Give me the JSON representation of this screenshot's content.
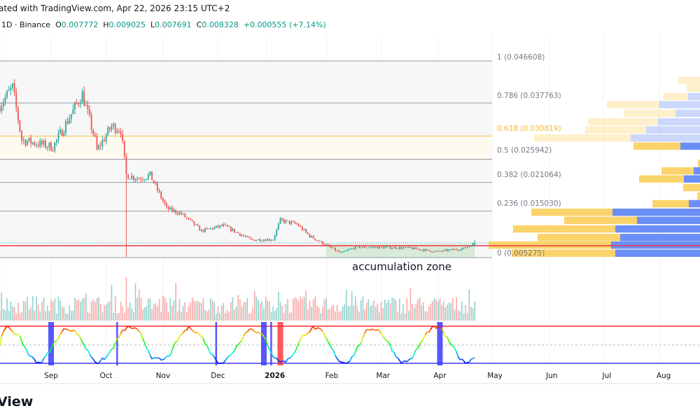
{
  "header": {
    "attribution": "ated with TradingView.com, Apr 22, 2026 23:15 UTC+2",
    "interval_exchange": "1D · Binance",
    "open_label": "O",
    "open": "0.007772",
    "high_label": "H",
    "high": "0.009025",
    "low_label": "L",
    "low": "0.007691",
    "close_label": "C",
    "close": "0.008328",
    "change": "+0.000555 (+7.14%)"
  },
  "footer": {
    "brand_fragment": "View"
  },
  "colors": {
    "up": "#26a69a",
    "down": "#ef5350",
    "fib_highlight": "#f5c342",
    "support": "#f23645",
    "vp_buy": "#fbd36b",
    "vp_sell": "#6b8ff7",
    "signal_blue": "#3b3bff",
    "signal_red": "#ff3b3b"
  },
  "chart_data": {
    "type": "candlestick",
    "interval": "1D",
    "x_unit": "days since Sep 1, 2025",
    "y_range": [
      0.005275,
      0.046608
    ],
    "price_path_anchors": [
      [
        -28,
        0.0373
      ],
      [
        -21,
        0.041
      ],
      [
        -16,
        0.03
      ],
      [
        1,
        0.0285
      ],
      [
        17,
        0.0396
      ],
      [
        24,
        0.03
      ],
      [
        25,
        0.0278
      ],
      [
        33,
        0.0329
      ],
      [
        38,
        0.0322
      ],
      [
        41,
        0.0226
      ],
      [
        48,
        0.0219
      ],
      [
        54,
        0.0226
      ],
      [
        63,
        0.0156
      ],
      [
        71,
        0.0145
      ],
      [
        82,
        0.0109
      ],
      [
        94,
        0.012
      ],
      [
        109,
        0.009
      ],
      [
        121,
        0.0091
      ],
      [
        125,
        0.0131
      ],
      [
        134,
        0.0123
      ],
      [
        141,
        0.0098
      ],
      [
        150,
        0.0079
      ],
      [
        158,
        0.0062
      ],
      [
        166,
        0.0075
      ],
      [
        195,
        0.0073
      ],
      [
        210,
        0.0065
      ],
      [
        225,
        0.0072
      ],
      [
        231,
        0.0083
      ]
    ],
    "last_candle": {
      "open": 0.007772,
      "high": 0.009025,
      "low": 0.007691,
      "close": 0.008328
    },
    "fib_levels": [
      {
        "ratio": "1",
        "price": 0.046608,
        "label": "1 (0.046608)"
      },
      {
        "ratio": "0.786",
        "price": 0.037763,
        "label": "0.786 (0.037763)"
      },
      {
        "ratio": "0.618",
        "price": 0.030819,
        "label": "0.618 (0.030819)",
        "highlight": true
      },
      {
        "ratio": "0.5",
        "price": 0.025942,
        "label": "0.5 (0.025942)"
      },
      {
        "ratio": "0.382",
        "price": 0.021064,
        "label": "0.382 (0.021064)"
      },
      {
        "ratio": "0.236",
        "price": 0.01503,
        "label": "0.236 (0.015030)"
      },
      {
        "ratio": "0",
        "price": 0.005275,
        "label": "0 (0.005275)"
      }
    ],
    "support_line_price": 0.0076,
    "accumulation_zone": {
      "label": "accumulation zone",
      "start_day": 150,
      "end_day": 231,
      "low": 0.005275,
      "high": 0.0081
    },
    "volume_profile": [
      [
        0.0425,
        32,
        0,
        true
      ],
      [
        0.0409,
        19,
        0,
        true
      ],
      [
        0.0391,
        35,
        17,
        true
      ],
      [
        0.0374,
        75,
        58,
        true
      ],
      [
        0.0356,
        74,
        35,
        true
      ],
      [
        0.0338,
        100,
        60,
        true
      ],
      [
        0.0321,
        87,
        77,
        true
      ],
      [
        0.0304,
        138,
        99,
        true
      ],
      [
        0.0287,
        67,
        28,
        false
      ],
      [
        0.0251,
        3,
        0,
        false
      ],
      [
        0.0235,
        46,
        9,
        false
      ],
      [
        0.0218,
        64,
        23,
        false
      ],
      [
        0.02,
        24,
        0,
        false
      ],
      [
        0.0182,
        4,
        0,
        false
      ],
      [
        0.0166,
        52,
        16,
        false
      ],
      [
        0.0148,
        116,
        125,
        false
      ],
      [
        0.0131,
        104,
        90,
        false
      ],
      [
        0.0113,
        146,
        121,
        false
      ],
      [
        0.0095,
        118,
        114,
        false
      ],
      [
        0.0079,
        175,
        127,
        false
      ],
      [
        0.0062,
        148,
        121,
        false
      ]
    ],
    "oscillator_signals": [
      {
        "day": 0,
        "color": "blue",
        "wide": true
      },
      {
        "day": 36,
        "color": "blue",
        "wide": false
      },
      {
        "day": 90,
        "color": "blue",
        "wide": false
      },
      {
        "day": 116,
        "color": "blue",
        "wide": true
      },
      {
        "day": 120,
        "color": "blue",
        "wide": false
      },
      {
        "day": 125,
        "color": "red",
        "wide": true
      },
      {
        "day": 212,
        "color": "blue",
        "wide": true
      }
    ],
    "x_ticks": [
      {
        "label": "g",
        "day": -31
      },
      {
        "label": "Sep",
        "day": 0
      },
      {
        "label": "Oct",
        "day": 30
      },
      {
        "label": "Nov",
        "day": 61
      },
      {
        "label": "Dec",
        "day": 91
      },
      {
        "label": "2026",
        "day": 122,
        "bold": true
      },
      {
        "label": "Feb",
        "day": 153
      },
      {
        "label": "Mar",
        "day": 181
      },
      {
        "label": "Apr",
        "day": 212
      },
      {
        "label": "May",
        "day": 242
      },
      {
        "label": "Jun",
        "day": 273
      },
      {
        "label": "Jul",
        "day": 303
      },
      {
        "label": "Aug",
        "day": 334
      }
    ]
  }
}
